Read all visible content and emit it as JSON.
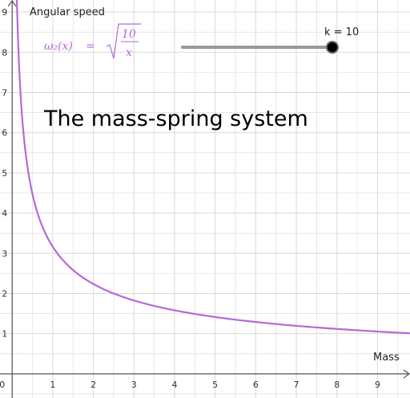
{
  "chart_data": {
    "type": "line",
    "title": "The mass-spring system",
    "xlabel": "Mass",
    "ylabel": "Angular speed",
    "xlim": [
      -0.3,
      9.8
    ],
    "ylim": [
      -0.6,
      9.3
    ],
    "x_ticks": [
      "1",
      "2",
      "3",
      "4",
      "5",
      "6",
      "7",
      "8",
      "9"
    ],
    "y_ticks": [
      "1",
      "2",
      "3",
      "4",
      "5",
      "6",
      "7",
      "8",
      "9"
    ],
    "origin_label": "0",
    "grid": true,
    "series": [
      {
        "color": "#b36ad8",
        "k": 10,
        "function": "sqrt(k/x)",
        "x": [
          0.12,
          0.25,
          0.5,
          1,
          2,
          3,
          4,
          5,
          6,
          7,
          8,
          9,
          9.8
        ],
        "y": [
          9.13,
          6.32,
          4.47,
          3.16,
          2.24,
          1.83,
          1.58,
          1.41,
          1.29,
          1.2,
          1.12,
          1.05,
          1.01
        ]
      }
    ]
  },
  "formula": {
    "lhs": "ω₂(x)",
    "equals": "=",
    "numerator": "10",
    "denominator": "x"
  },
  "slider": {
    "label": "k = 10",
    "value": 10,
    "min": 0,
    "max": 10,
    "track_color": "#999999",
    "knob_color": "#000000"
  },
  "colors": {
    "curve": "#b36ad8",
    "grid": "#d9d9d9",
    "axis": "#555555"
  }
}
